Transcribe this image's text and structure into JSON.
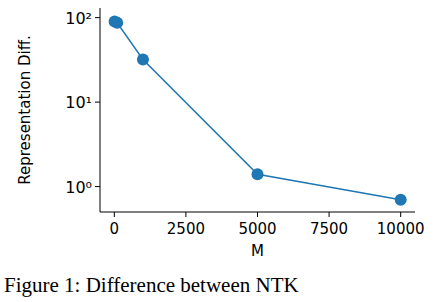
{
  "chart_data": {
    "type": "line",
    "x_label": "M",
    "y_label": "Representation Diff.",
    "caption": "Figure 1: Difference between NTK",
    "x": [
      10,
      100,
      1000,
      5000,
      10000
    ],
    "series": [
      {
        "name": null,
        "color": "#1f77b4",
        "marker": "circle",
        "line_style": "solid",
        "values": [
          90,
          87,
          32,
          1.4,
          0.7
        ]
      }
    ],
    "log": "y",
    "xlim": [
      -500,
      10500
    ],
    "xticks": [
      0,
      2500,
      5000,
      7500,
      10000
    ],
    "ylim": [
      0.5,
      130
    ],
    "yticks": [
      {
        "value": 1,
        "label": "10⁰"
      },
      {
        "value": 10,
        "label": "10¹"
      },
      {
        "value": 100,
        "label": "10²"
      }
    ],
    "grid": false
  }
}
